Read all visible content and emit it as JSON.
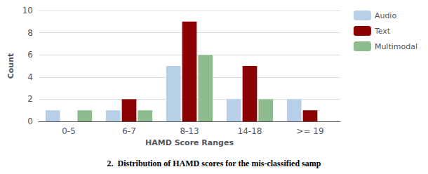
{
  "chart_data": {
    "type": "bar",
    "caption": "2.  Distribution of HAMD scores for the mis-classified samp",
    "xlabel": "HAMD Score Ranges",
    "ylabel": "Count",
    "categories": [
      "0-5",
      "6-7",
      "8-13",
      "14-18",
      ">= 19"
    ],
    "series": [
      {
        "name": "Audio",
        "color": "#b8cfe8",
        "values": [
          1,
          1,
          5,
          2,
          2
        ]
      },
      {
        "name": "Text",
        "color": "#8b0000",
        "values": [
          0,
          2,
          9,
          5,
          1
        ]
      },
      {
        "name": "Multimodal",
        "color": "#8fbc8f",
        "values": [
          1,
          1,
          6,
          2,
          0
        ]
      }
    ],
    "ylim": [
      0,
      10
    ],
    "yticks": [
      0,
      2,
      4,
      6,
      8,
      10
    ],
    "grid": true,
    "legend": "right"
  }
}
